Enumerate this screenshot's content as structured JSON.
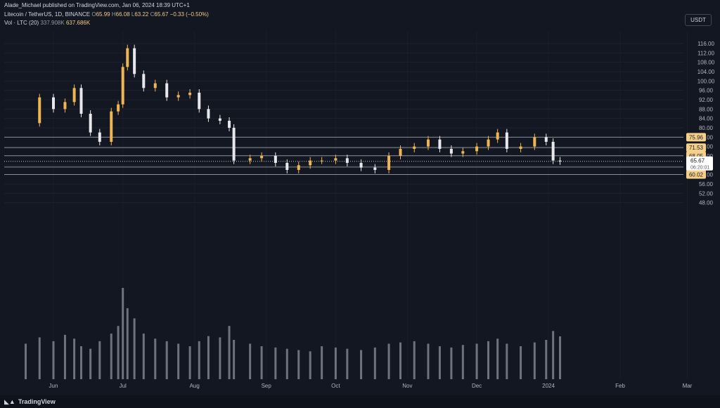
{
  "header": {
    "published": "Alade_Michael published on TradingView.com, Jan 06, 2024 18:39 UTC+1",
    "symbol": "Litecoin / TetherUS, 1D, BINANCE",
    "o_label": "O",
    "o_val": "65.99",
    "h_label": "H",
    "h_val": "66.08",
    "l_label": "L",
    "l_val": "63.22",
    "c_label": "C",
    "c_val": "65.67",
    "change": "−0.33 (−0.50%)",
    "vol_label": "Vol · LTC (20)",
    "vol1": "337.908K",
    "vol2": "637.686K"
  },
  "currency_chip": "USDT",
  "footer": {
    "brand": "TradingView",
    "logo_icon": "tradingview-logo-icon"
  },
  "colors": {
    "up": "#f0b553",
    "down": "#e8e8ec",
    "bg": "#131722",
    "level_line": "#8a8d96",
    "price_line": "#c8c8c8"
  },
  "chart_data": {
    "type": "candlestick",
    "symbol": "LTC/USDT",
    "timeframe": "1D",
    "ylim": [
      44,
      120
    ],
    "y_ticks": [
      "116.00",
      "112.00",
      "108.00",
      "104.00",
      "100.00",
      "96.00",
      "92.00",
      "88.00",
      "84.00",
      "80.00",
      "76.00",
      "72.00",
      "68.00",
      "64.00",
      "60.00",
      "56.00",
      "52.00",
      "48.00"
    ],
    "x_ticks": [
      "Jun",
      "Jul",
      "Aug",
      "Sep",
      "Oct",
      "Nov",
      "Dec",
      "2024",
      "Feb",
      "Mar"
    ],
    "levels": [
      {
        "label": "75.96",
        "value": 75.96
      },
      {
        "label": "71.53",
        "value": 71.53
      },
      {
        "label": "68.05",
        "value": 68.05
      },
      {
        "label": "63.24",
        "value": 63.24
      },
      {
        "label": "60.02",
        "value": 60.02
      }
    ],
    "last_price": {
      "value": 65.67,
      "label": "65.67",
      "countdown": "06:20:01"
    },
    "series": [
      {
        "name": "Price",
        "points": [
          [
            "2023-05-20",
            82
          ],
          [
            "2023-05-26",
            93
          ],
          [
            "2023-06-01",
            88
          ],
          [
            "2023-06-06",
            91
          ],
          [
            "2023-06-10",
            97
          ],
          [
            "2023-06-13",
            86
          ],
          [
            "2023-06-17",
            78
          ],
          [
            "2023-06-21",
            74
          ],
          [
            "2023-06-26",
            87
          ],
          [
            "2023-06-29",
            90
          ],
          [
            "2023-07-01",
            106
          ],
          [
            "2023-07-03",
            114
          ],
          [
            "2023-07-06",
            103
          ],
          [
            "2023-07-10",
            97
          ],
          [
            "2023-07-15",
            99
          ],
          [
            "2023-07-20",
            93
          ],
          [
            "2023-07-25",
            94
          ],
          [
            "2023-07-30",
            95
          ],
          [
            "2023-08-03",
            88
          ],
          [
            "2023-08-07",
            84
          ],
          [
            "2023-08-12",
            83
          ],
          [
            "2023-08-16",
            80
          ],
          [
            "2023-08-18",
            66
          ],
          [
            "2023-08-25",
            67
          ],
          [
            "2023-08-30",
            68
          ],
          [
            "2023-09-05",
            65
          ],
          [
            "2023-09-10",
            62
          ],
          [
            "2023-09-15",
            64
          ],
          [
            "2023-09-20",
            66
          ],
          [
            "2023-09-25",
            66
          ],
          [
            "2023-10-01",
            67
          ],
          [
            "2023-10-06",
            65
          ],
          [
            "2023-10-12",
            63
          ],
          [
            "2023-10-18",
            62
          ],
          [
            "2023-10-24",
            68
          ],
          [
            "2023-10-29",
            71
          ],
          [
            "2023-11-04",
            72
          ],
          [
            "2023-11-10",
            75
          ],
          [
            "2023-11-15",
            71
          ],
          [
            "2023-11-20",
            69
          ],
          [
            "2023-11-25",
            70
          ],
          [
            "2023-12-01",
            72
          ],
          [
            "2023-12-06",
            75
          ],
          [
            "2023-12-10",
            78
          ],
          [
            "2023-12-14",
            71
          ],
          [
            "2023-12-20",
            72
          ],
          [
            "2023-12-26",
            76
          ],
          [
            "2023-12-31",
            74
          ],
          [
            "2024-01-03",
            66
          ],
          [
            "2024-01-06",
            65.67
          ]
        ]
      },
      {
        "name": "Volume",
        "values_k": [
          280,
          330,
          300,
          350,
          320,
          260,
          240,
          300,
          360,
          420,
          720,
          560,
          480,
          360,
          320,
          300,
          280,
          260,
          300,
          340,
          330,
          420,
          310,
          280,
          260,
          250,
          240,
          230,
          220,
          260,
          250,
          240,
          230,
          250,
          280,
          290,
          300,
          280,
          260,
          250,
          270,
          280,
          300,
          320,
          280,
          260,
          290,
          310,
          380,
          338
        ]
      }
    ]
  }
}
